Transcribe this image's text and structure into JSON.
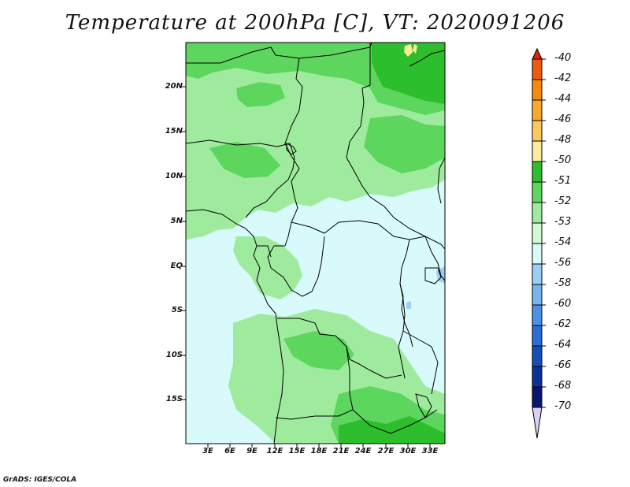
{
  "title": "Temperature at 200hPa [C], VT: 2020091206",
  "y_axis_labels": [
    "20N",
    "15N",
    "10N",
    "5N",
    "EQ",
    "5S",
    "10S",
    "15S"
  ],
  "x_axis_labels": [
    "3E",
    "6E",
    "9E",
    "12E",
    "15E",
    "18E",
    "21E",
    "24E",
    "27E",
    "30E",
    "33E"
  ],
  "colorbar": {
    "labels": [
      "-40",
      "-42",
      "-44",
      "-46",
      "-48",
      "-50",
      "-51",
      "-52",
      "-53",
      "-54",
      "-56",
      "-58",
      "-60",
      "-62",
      "-64",
      "-66",
      "-68",
      "-70"
    ],
    "colors": [
      "#e8200c",
      "#f05a0a",
      "#f58a0c",
      "#f9a82a",
      "#fbc85a",
      "#fdec9e",
      "#2cbe2c",
      "#5cd65c",
      "#9eeb9e",
      "#d2fad2",
      "#d8fafa",
      "#9ccdf7",
      "#78b4f0",
      "#4a92e6",
      "#2870d8",
      "#1050b8",
      "#0b3296",
      "#0a1670",
      "#dcd0f5"
    ]
  },
  "map": {
    "region": "Central Africa",
    "colors": {
      "c50": "#fdec9e",
      "c51": "#2cbe2c",
      "c52": "#5cd65c",
      "c53": "#9eeb9e",
      "c54": "#d8fafa",
      "c56": "#9ccdf7",
      "border": "#000000"
    }
  },
  "credit": "GrADS: IGES/COLA"
}
